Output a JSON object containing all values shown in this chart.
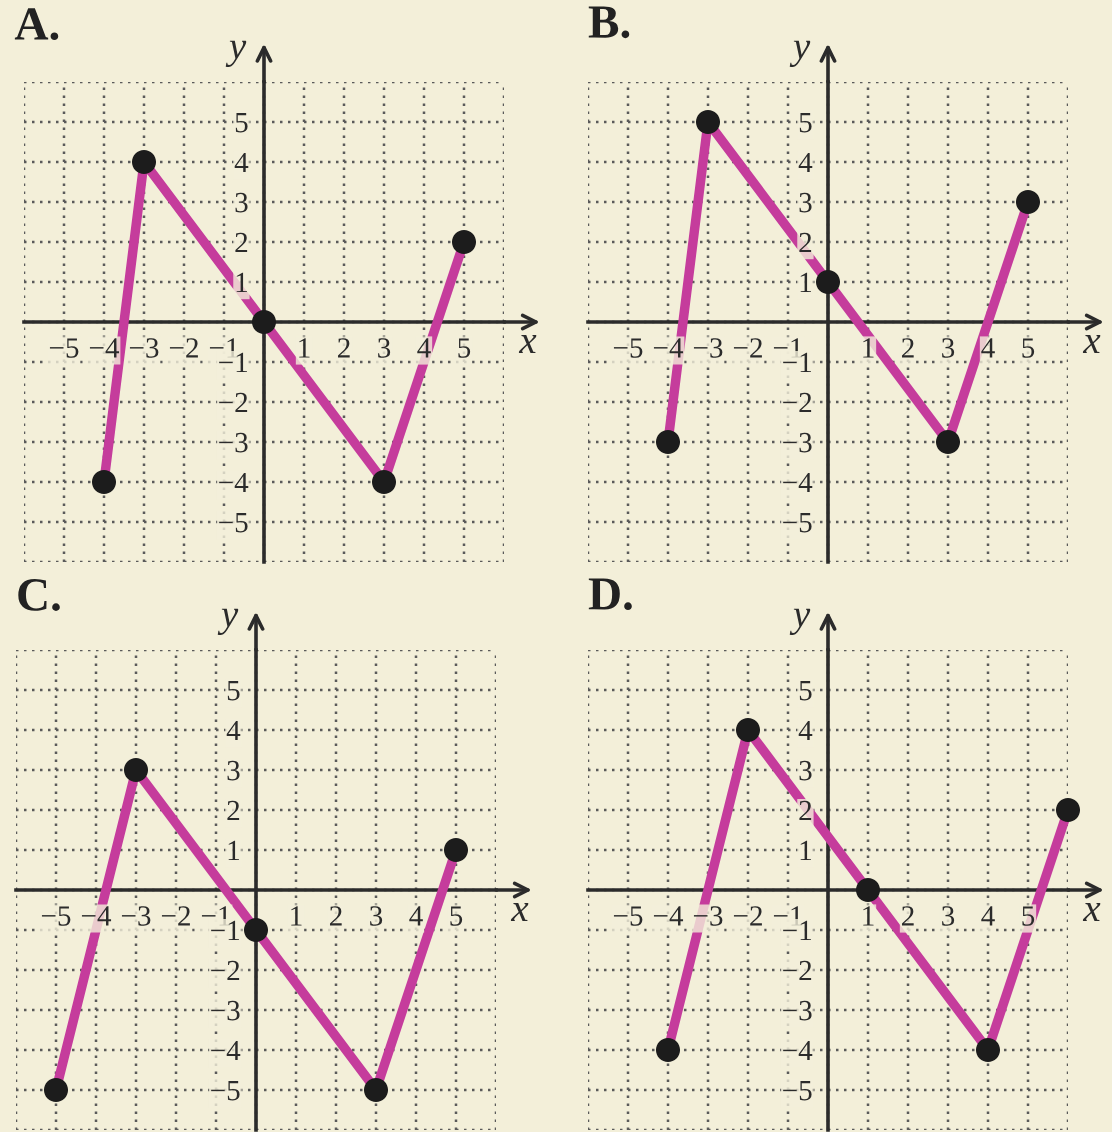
{
  "chart_data": [
    {
      "type": "line",
      "title": "A.",
      "xlabel": "x",
      "ylabel": "y",
      "xlim": [
        -6,
        6
      ],
      "ylim": [
        -6,
        6
      ],
      "xticks": [
        {
          "value": -6,
          "label": null
        },
        -5,
        -4,
        -3,
        -2,
        -1,
        {
          "value": 0,
          "label": null
        },
        1,
        2,
        3,
        4,
        5,
        {
          "value": 6,
          "label": null
        }
      ],
      "yticks": [
        {
          "value": -6,
          "label": null
        },
        -5,
        -4,
        -3,
        -2,
        -1,
        {
          "value": 0,
          "label": null
        },
        1,
        2,
        3,
        4,
        5,
        {
          "value": 6,
          "label": null
        }
      ],
      "grid": true,
      "marker": "circle",
      "line_style": "solid",
      "series": [
        {
          "color": "#c53c9c",
          "x": [
            -4,
            -3,
            0,
            3,
            5
          ],
          "values": [
            -4,
            4,
            0,
            -4,
            2
          ]
        }
      ]
    },
    {
      "type": "line",
      "title": "B.",
      "xlabel": "x",
      "ylabel": "y",
      "xlim": [
        -6,
        6
      ],
      "ylim": [
        -6,
        6
      ],
      "xticks": [
        {
          "value": -6,
          "label": null
        },
        -5,
        -4,
        -3,
        -2,
        -1,
        {
          "value": 0,
          "label": null
        },
        1,
        2,
        3,
        4,
        5,
        {
          "value": 6,
          "label": null
        }
      ],
      "yticks": [
        {
          "value": -6,
          "label": null
        },
        -5,
        -4,
        -3,
        -2,
        -1,
        {
          "value": 0,
          "label": null
        },
        1,
        2,
        3,
        4,
        5,
        {
          "value": 6,
          "label": null
        }
      ],
      "grid": true,
      "marker": "circle",
      "line_style": "solid",
      "series": [
        {
          "color": "#c53c9c",
          "x": [
            -4,
            -3,
            0,
            3,
            5
          ],
          "values": [
            -3,
            5,
            1,
            -3,
            3
          ]
        }
      ]
    },
    {
      "type": "line",
      "title": "C.",
      "xlabel": "x",
      "ylabel": "y",
      "xlim": [
        -6,
        6
      ],
      "ylim": [
        -6,
        6
      ],
      "xticks": [
        {
          "value": -6,
          "label": null
        },
        -5,
        -4,
        -3,
        -2,
        -1,
        {
          "value": 0,
          "label": null
        },
        1,
        2,
        3,
        4,
        5,
        {
          "value": 6,
          "label": null
        }
      ],
      "yticks": [
        {
          "value": -6,
          "label": null
        },
        -5,
        -4,
        -3,
        -2,
        -1,
        {
          "value": 0,
          "label": null
        },
        1,
        2,
        3,
        4,
        5,
        {
          "value": 6,
          "label": null
        }
      ],
      "grid": true,
      "marker": "circle",
      "line_style": "solid",
      "series": [
        {
          "color": "#c53c9c",
          "x": [
            -5,
            -3,
            0,
            3,
            5
          ],
          "values": [
            -5,
            3,
            -1,
            -5,
            1
          ]
        }
      ]
    },
    {
      "type": "line",
      "title": "D.",
      "xlabel": "x",
      "ylabel": "y",
      "xlim": [
        -6,
        6
      ],
      "ylim": [
        -6,
        6
      ],
      "xticks": [
        {
          "value": -6,
          "label": null
        },
        -5,
        -4,
        -3,
        -2,
        -1,
        {
          "value": 0,
          "label": null
        },
        1,
        2,
        3,
        4,
        5,
        {
          "value": 6,
          "label": null
        }
      ],
      "yticks": [
        {
          "value": -6,
          "label": null
        },
        -5,
        -4,
        -3,
        -2,
        -1,
        {
          "value": 0,
          "label": null
        },
        1,
        2,
        3,
        4,
        5,
        {
          "value": 6,
          "label": null
        }
      ],
      "grid": true,
      "marker": "circle",
      "line_style": "solid",
      "series": [
        {
          "color": "#c53c9c",
          "x": [
            -4,
            -2,
            1,
            4,
            6
          ],
          "values": [
            -4,
            4,
            0,
            -4,
            2
          ]
        }
      ]
    }
  ]
}
